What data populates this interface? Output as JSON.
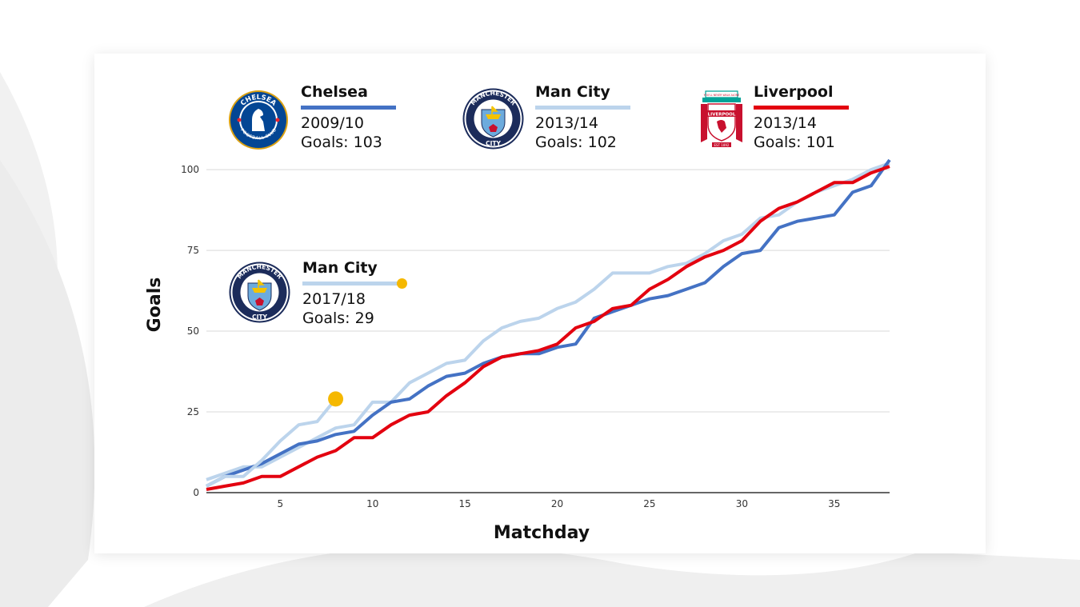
{
  "chart_data": {
    "type": "line",
    "xlabel": "Matchday",
    "ylabel": "Goals",
    "xlim": [
      1,
      38
    ],
    "ylim": [
      0,
      103
    ],
    "x_ticks": [
      5,
      10,
      15,
      20,
      25,
      30,
      35
    ],
    "y_ticks": [
      0,
      25,
      50,
      75,
      100
    ],
    "grid": "horizontal",
    "series": [
      {
        "name": "Chelsea",
        "season": "2009/10",
        "goals_label": "Goals: 103",
        "color": "#4472c4",
        "x": [
          1,
          2,
          3,
          4,
          5,
          6,
          7,
          8,
          9,
          10,
          11,
          12,
          13,
          14,
          15,
          16,
          17,
          18,
          19,
          20,
          21,
          22,
          23,
          24,
          25,
          26,
          27,
          28,
          29,
          30,
          31,
          32,
          33,
          34,
          35,
          36,
          37,
          38
        ],
        "values": [
          2,
          5,
          7,
          9,
          12,
          15,
          16,
          18,
          19,
          24,
          28,
          29,
          33,
          36,
          37,
          40,
          42,
          43,
          43,
          45,
          46,
          54,
          56,
          58,
          60,
          61,
          63,
          65,
          70,
          74,
          75,
          82,
          84,
          85,
          86,
          93,
          95,
          103
        ]
      },
      {
        "name": "Man City",
        "season": "2013/14",
        "goals_label": "Goals: 102",
        "color": "#bcd4ec",
        "x": [
          1,
          2,
          3,
          4,
          5,
          6,
          7,
          8,
          9,
          10,
          11,
          12,
          13,
          14,
          15,
          16,
          17,
          18,
          19,
          20,
          21,
          22,
          23,
          24,
          25,
          26,
          27,
          28,
          29,
          30,
          31,
          32,
          33,
          34,
          35,
          36,
          37,
          38
        ],
        "values": [
          4,
          6,
          8,
          8,
          11,
          14,
          17,
          20,
          21,
          28,
          28,
          34,
          37,
          40,
          41,
          47,
          51,
          53,
          54,
          57,
          59,
          63,
          68,
          68,
          68,
          70,
          71,
          74,
          78,
          80,
          85,
          86,
          90,
          93,
          95,
          97,
          100,
          102
        ]
      },
      {
        "name": "Liverpool",
        "season": "2013/14",
        "goals_label": "Goals: 101",
        "color": "#e3000f",
        "x": [
          1,
          2,
          3,
          4,
          5,
          6,
          7,
          8,
          9,
          10,
          11,
          12,
          13,
          14,
          15,
          16,
          17,
          18,
          19,
          20,
          21,
          22,
          23,
          24,
          25,
          26,
          27,
          28,
          29,
          30,
          31,
          32,
          33,
          34,
          35,
          36,
          37,
          38
        ],
        "values": [
          1,
          2,
          3,
          5,
          5,
          8,
          11,
          13,
          17,
          17,
          21,
          24,
          25,
          30,
          34,
          39,
          42,
          43,
          44,
          46,
          51,
          53,
          57,
          58,
          63,
          66,
          70,
          73,
          75,
          78,
          84,
          88,
          90,
          93,
          96,
          96,
          99,
          101
        ]
      },
      {
        "name": "Man City",
        "season": "2017/18",
        "goals_label": "Goals: 29",
        "color": "#bcd4ec",
        "marker_color": "#f5b800",
        "x": [
          1,
          2,
          3,
          4,
          5,
          6,
          7,
          8
        ],
        "values": [
          2,
          5,
          5,
          10,
          16,
          21,
          22,
          29
        ]
      }
    ]
  },
  "crests": {
    "chelsea": {
      "text_top": "CHELSEA",
      "text_bottom": "FOOTBALL CLUB",
      "color": "#034694",
      "accent": "#ee242c",
      "gold": "#dba111"
    },
    "mancity": {
      "text_top": "MANCHESTER",
      "text_bottom": "CITY",
      "color": "#1c2c5b",
      "sky": "#6cabdd",
      "gold": "#f4c300"
    },
    "liverpool": {
      "text_banner": "LIVERPOOL",
      "text_top": "YOU'LL NEVER WALK ALONE",
      "text_est": "EST 1892",
      "red": "#c8102e",
      "green": "#00a398"
    }
  }
}
